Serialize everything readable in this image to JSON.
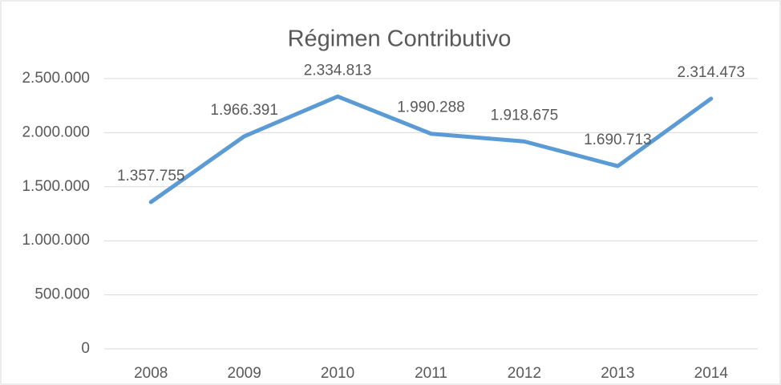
{
  "chart_data": {
    "type": "line",
    "title": "Régimen Contributivo",
    "categories": [
      "2008",
      "2009",
      "2010",
      "2011",
      "2012",
      "2013",
      "2014"
    ],
    "series": [
      {
        "name": "Régimen Contributivo",
        "color": "#5b9bd5",
        "values": [
          1357755,
          1966391,
          2334813,
          1990288,
          1918675,
          1690713,
          2314473
        ],
        "value_labels": [
          "1.357.755",
          "1.966.391",
          "2.334.813",
          "1.990.288",
          "1.918.675",
          "1.690.713",
          "2.314.473"
        ]
      }
    ],
    "ylim": [
      0,
      2500000
    ],
    "yticks": [
      0,
      {
        "value": 500000,
        "label": "500.000"
      },
      {
        "value": 1000000,
        "label": "1.000.000"
      },
      {
        "value": 1500000,
        "label": "1.500.000"
      },
      {
        "value": 2000000,
        "label": "2.000.000"
      },
      {
        "value": 2500000,
        "label": "2.500.000"
      }
    ],
    "grid": true
  }
}
